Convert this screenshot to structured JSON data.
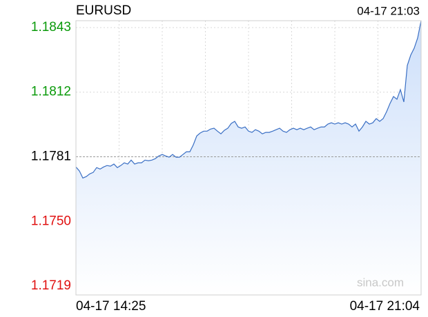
{
  "chart_data": {
    "type": "line",
    "title": "EURUSD",
    "time": "04-17 21:03",
    "watermark": "sina.com",
    "xtick_labels": [
      "04-17 14:25",
      "04-17 21:04"
    ],
    "values": [
      1.17761,
      1.17742,
      1.17708,
      1.17715,
      1.17728,
      1.17735,
      1.17758,
      1.17751,
      1.17761,
      1.17768,
      1.17765,
      1.17775,
      1.17758,
      1.17768,
      1.17781,
      1.17775,
      1.17794,
      1.17775,
      1.17781,
      1.17781,
      1.17794,
      1.17791,
      1.17794,
      1.17801,
      1.17814,
      1.17821,
      1.17814,
      1.17808,
      1.17821,
      1.17808,
      1.17808,
      1.17821,
      1.17834,
      1.17834,
      1.17867,
      1.1791,
      1.17924,
      1.17933,
      1.17933,
      1.17943,
      1.17947,
      1.17933,
      1.1792,
      1.17937,
      1.17947,
      1.1797,
      1.1798,
      1.17953,
      1.17947,
      1.17953,
      1.17933,
      1.17927,
      1.1794,
      1.17933,
      1.1792,
      1.17927,
      1.17927,
      1.17933,
      1.1794,
      1.17947,
      1.17933,
      1.17927,
      1.1794,
      1.17947,
      1.1794,
      1.17947,
      1.1794,
      1.17947,
      1.17953,
      1.1794,
      1.17947,
      1.17953,
      1.17953,
      1.17967,
      1.17973,
      1.17967,
      1.17973,
      1.17967,
      1.17973,
      1.17967,
      1.17953,
      1.17967,
      1.17933,
      1.17953,
      1.1798,
      1.17967,
      1.17973,
      1.17993,
      1.1798,
      1.17993,
      1.18026,
      1.18066,
      1.18099,
      1.18086,
      1.18132,
      1.18073,
      1.18248,
      1.18298,
      1.18331,
      1.1838,
      1.18463
    ],
    "color": "#3a6fc4",
    "fill_color": "#cddffa",
    "ylim": [
      1.17147,
      1.18463
    ],
    "yticks": [
      1.1843,
      1.1812,
      1.1781,
      {
        "value": 1.175,
        "label": "1.1750"
      },
      1.1719
    ],
    "baseline": 1.1781,
    "up_color": "#0a9a0a",
    "down_color": "#e01010",
    "flat_color": "#000000",
    "grid": true
  }
}
